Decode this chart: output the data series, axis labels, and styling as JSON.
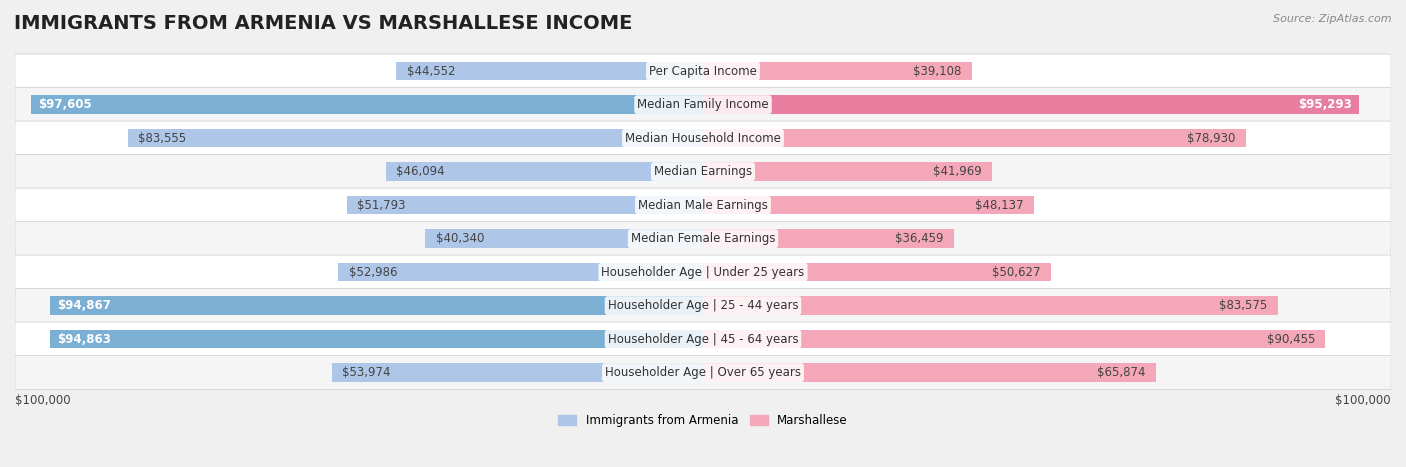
{
  "title": "IMMIGRANTS FROM ARMENIA VS MARSHALLESE INCOME",
  "source": "Source: ZipAtlas.com",
  "categories": [
    "Per Capita Income",
    "Median Family Income",
    "Median Household Income",
    "Median Earnings",
    "Median Male Earnings",
    "Median Female Earnings",
    "Householder Age | Under 25 years",
    "Householder Age | 25 - 44 years",
    "Householder Age | 45 - 64 years",
    "Householder Age | Over 65 years"
  ],
  "armenia_values": [
    44552,
    97605,
    83555,
    46094,
    51793,
    40340,
    52986,
    94867,
    94863,
    53974
  ],
  "marshallese_values": [
    39108,
    95293,
    78930,
    41969,
    48137,
    36459,
    50627,
    83575,
    90455,
    65874
  ],
  "armenia_labels": [
    "$44,552",
    "$97,605",
    "$83,555",
    "$46,094",
    "$51,793",
    "$40,340",
    "$52,986",
    "$94,867",
    "$94,863",
    "$53,974"
  ],
  "marshallese_labels": [
    "$39,108",
    "$95,293",
    "$78,930",
    "$41,969",
    "$48,137",
    "$36,459",
    "$50,627",
    "$83,575",
    "$90,455",
    "$65,874"
  ],
  "max_value": 100000,
  "armenia_color": "#aec6e8",
  "armenia_color_dark": "#7bafd4",
  "marshallese_color": "#f4a7b9",
  "marshallese_color_dark": "#e87fa0",
  "background_color": "#f0f0f0",
  "row_bg_color": "#ffffff",
  "row_bg_alt": "#f5f5f5",
  "xlabel_left": "$100,000",
  "xlabel_right": "$100,000",
  "legend_armenia": "Immigrants from Armenia",
  "legend_marshallese": "Marshallese",
  "title_fontsize": 14,
  "label_fontsize": 8.5,
  "category_fontsize": 8.5,
  "bar_height": 0.55
}
